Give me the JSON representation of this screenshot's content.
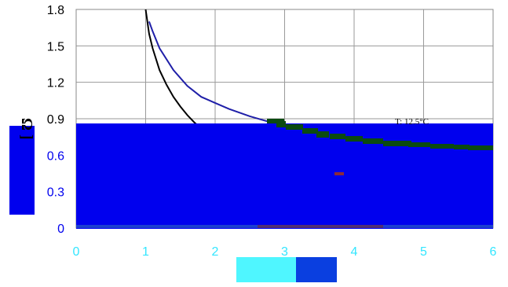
{
  "chart_data": {
    "type": "line",
    "title": "",
    "xlabel": "",
    "ylabel": "Ω ]",
    "xlim": [
      0,
      6
    ],
    "ylim": [
      0,
      1.8
    ],
    "x_ticks": [
      0,
      1,
      2,
      3,
      4,
      5,
      6
    ],
    "y_ticks": [
      0,
      0.3,
      0.6,
      0.9,
      1.2,
      1.5,
      1.8
    ],
    "x_tick_labels": [
      "0",
      "1",
      "2",
      "3",
      "4",
      "5",
      "6"
    ],
    "y_tick_labels": [
      "0",
      "0.3",
      "0.6",
      "0.9",
      "1.2",
      "1.5",
      "1.8"
    ],
    "grid": true,
    "annotation": "T: 12.5°C",
    "series": [
      {
        "color": "#000000",
        "points": [
          [
            1.0,
            1.8
          ],
          [
            1.05,
            1.6
          ],
          [
            1.1,
            1.48
          ],
          [
            1.2,
            1.3
          ],
          [
            1.3,
            1.18
          ],
          [
            1.4,
            1.08
          ],
          [
            1.5,
            1.0
          ],
          [
            1.6,
            0.93
          ],
          [
            1.7,
            0.87
          ],
          [
            1.8,
            0.82
          ]
        ]
      },
      {
        "color": "#1f1fa8",
        "points": [
          [
            1.05,
            1.7
          ],
          [
            1.1,
            1.62
          ],
          [
            1.2,
            1.48
          ],
          [
            1.4,
            1.3
          ],
          [
            1.6,
            1.17
          ],
          [
            1.8,
            1.08
          ],
          [
            2.0,
            1.03
          ],
          [
            2.2,
            0.98
          ],
          [
            2.5,
            0.92
          ],
          [
            2.8,
            0.87
          ]
        ]
      }
    ],
    "overlay_color": "#0000ee",
    "marker_color": "#0b4a10"
  }
}
